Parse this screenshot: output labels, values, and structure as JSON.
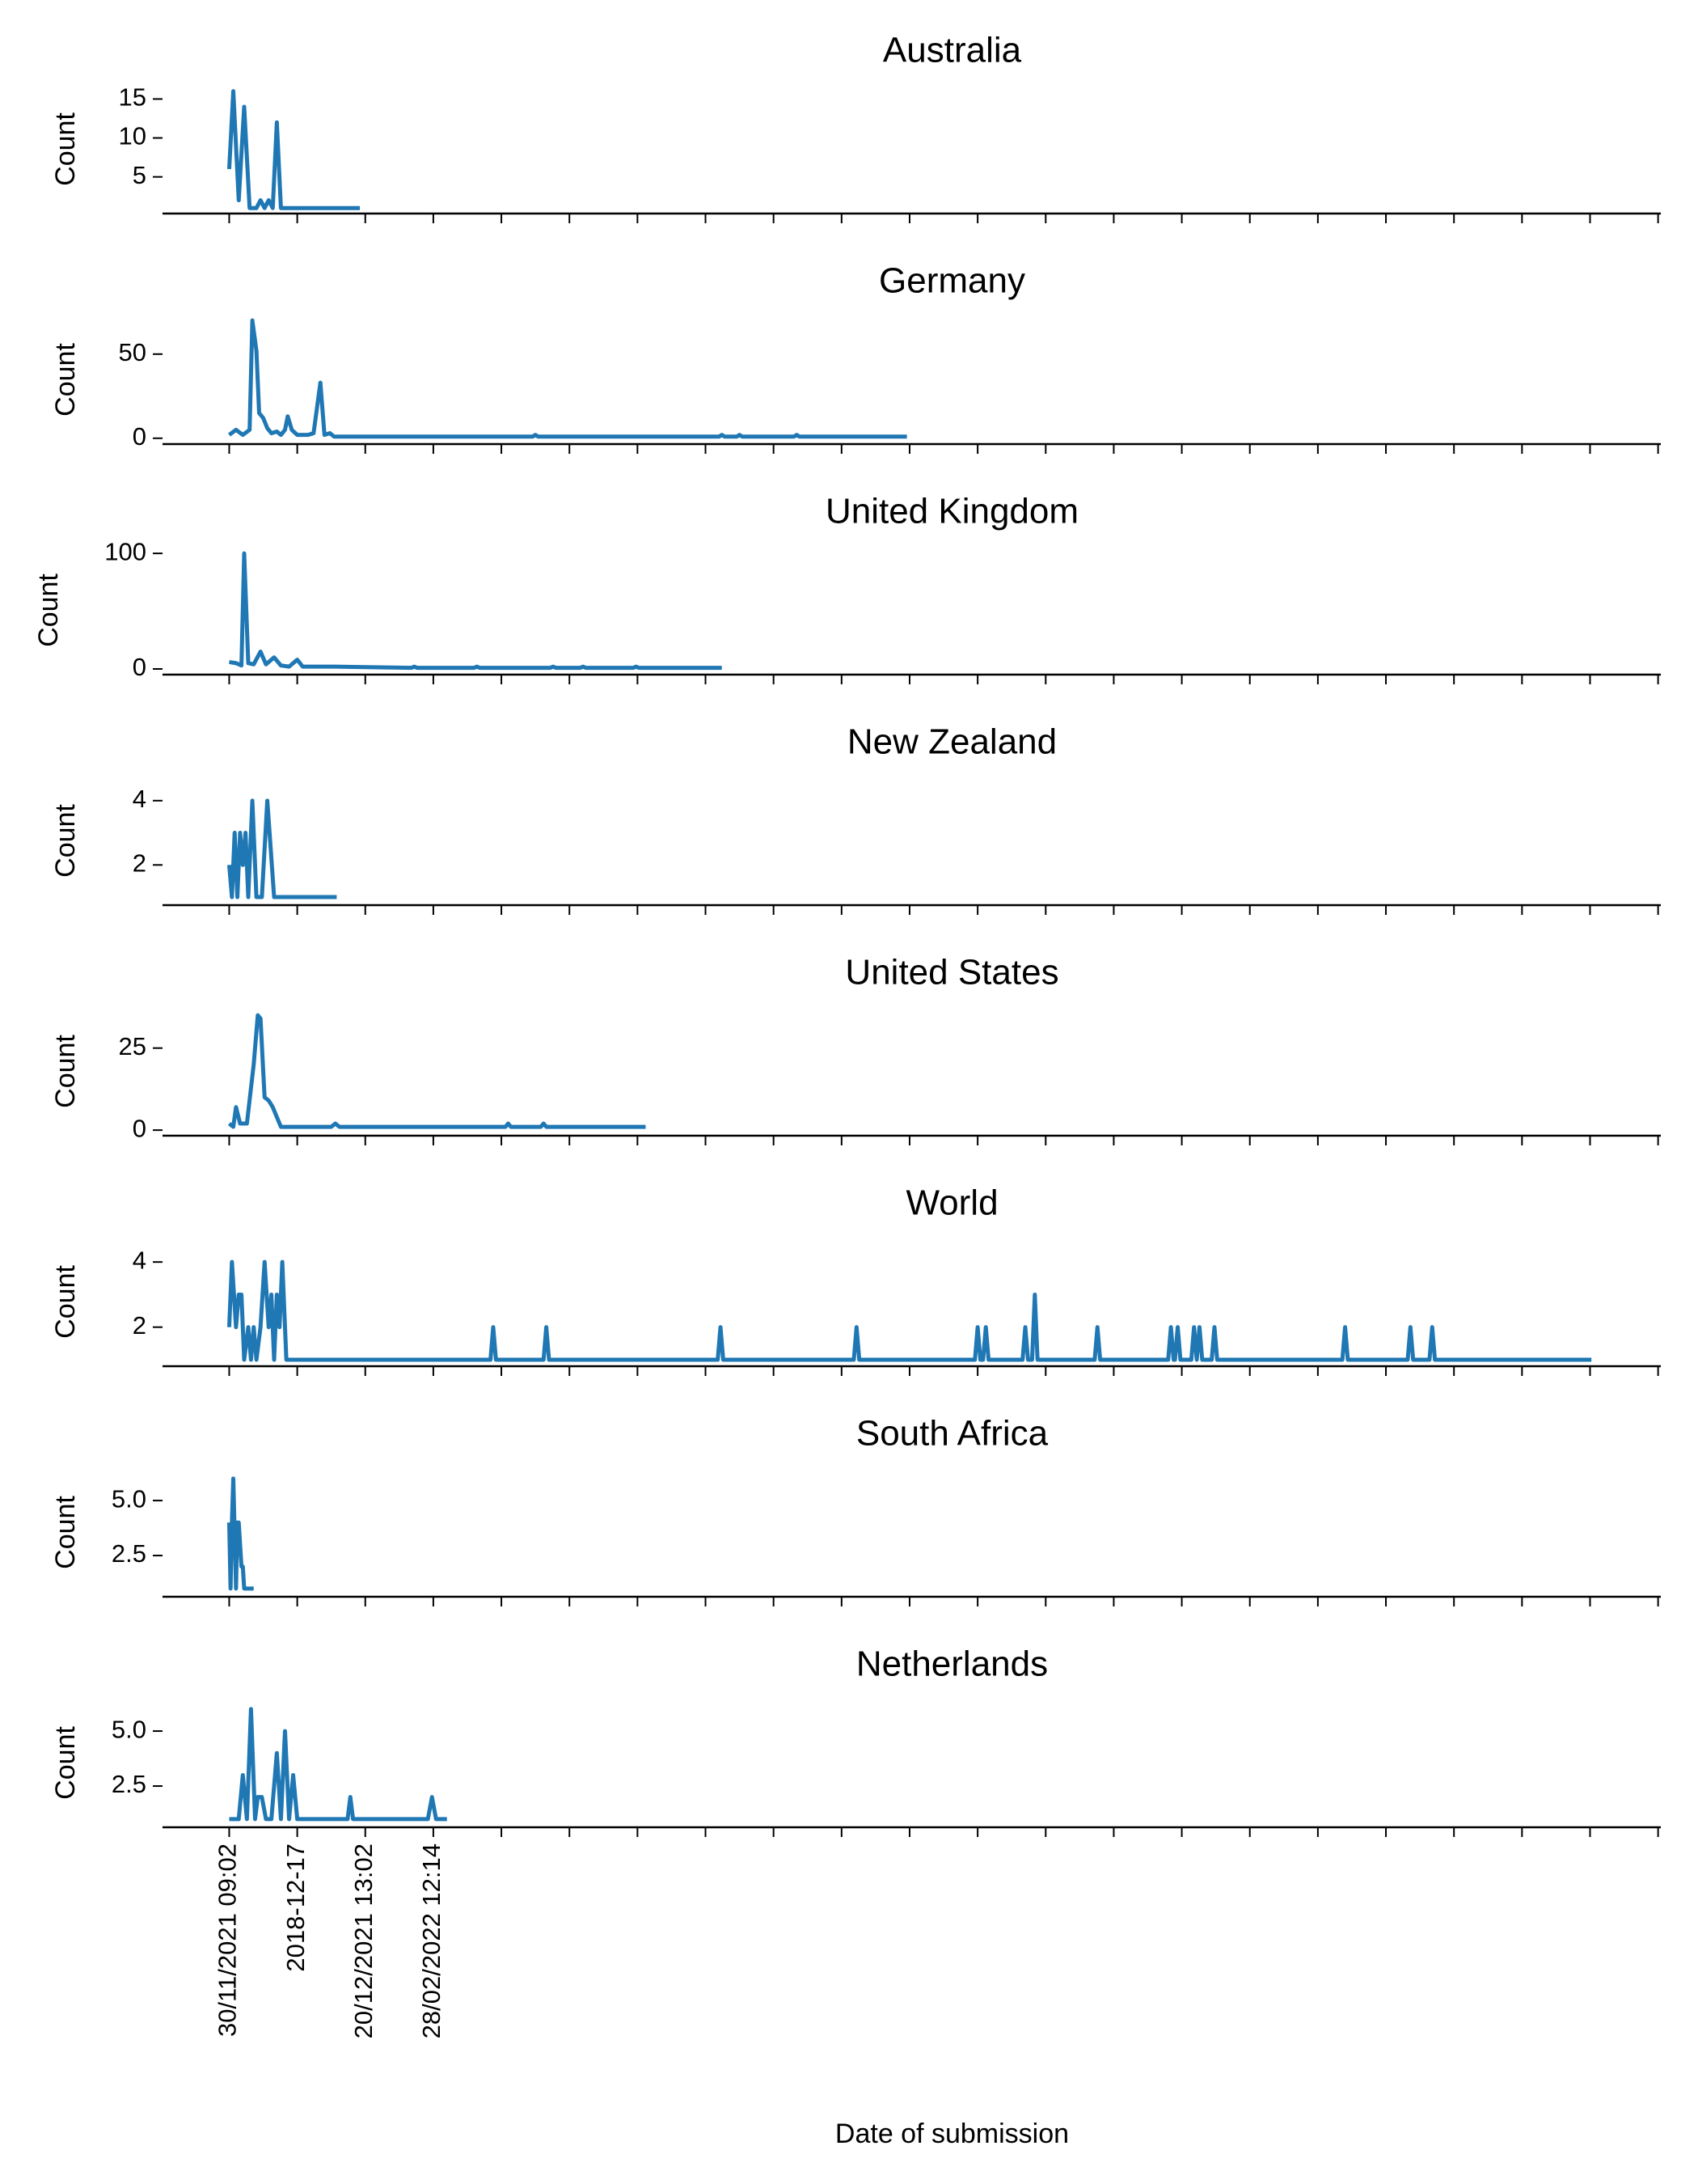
{
  "chart_data": [
    {
      "type": "line",
      "title": "Australia",
      "ylabel": "Count",
      "color": "#1f77b4",
      "x": [
        0,
        3,
        7,
        11,
        15,
        20,
        23,
        26,
        29,
        32,
        35,
        38,
        96
      ],
      "values": [
        6,
        16,
        2,
        14,
        1,
        1,
        2,
        1,
        2,
        1,
        12,
        1,
        1
      ],
      "xlim": [
        -49,
        1052
      ],
      "xticks": [
        0,
        50,
        100,
        150,
        200,
        250,
        300,
        350,
        400,
        450,
        500,
        550,
        600,
        650,
        700,
        750,
        800,
        850,
        900,
        950,
        1000,
        1050
      ],
      "ylim": [
        0.5,
        16.6
      ],
      "yticks": [
        5,
        10,
        15
      ]
    },
    {
      "type": "line",
      "title": "Germany",
      "ylabel": "Count",
      "color": "#1f77b4",
      "x": [
        0,
        5,
        10,
        15,
        17,
        20,
        22,
        25,
        28,
        31,
        35,
        38,
        41,
        43,
        46,
        50,
        54,
        58,
        62,
        67,
        70,
        74,
        77,
        223,
        225,
        227,
        360,
        362,
        364,
        373,
        375,
        377,
        415,
        417,
        419,
        498
      ],
      "values": [
        2,
        5,
        2,
        5,
        70,
        52,
        15,
        12,
        6,
        3,
        4,
        2,
        5,
        13,
        5,
        2,
        2,
        2,
        3,
        33,
        2,
        3,
        1,
        1,
        2,
        1,
        1,
        2,
        1,
        1,
        2,
        1,
        1,
        2,
        1,
        1
      ],
      "xlim": [
        -49,
        1052
      ],
      "xticks": [
        0,
        50,
        100,
        150,
        200,
        250,
        300,
        350,
        400,
        450,
        500,
        550,
        600,
        650,
        700,
        750,
        800,
        850,
        900,
        950,
        1000,
        1050
      ],
      "ylim": [
        -2.5,
        72
      ],
      "yticks": [
        0,
        50
      ]
    },
    {
      "type": "line",
      "title": "United Kingdom",
      "ylabel": "Count",
      "color": "#1f77b4",
      "x": [
        0,
        5,
        9,
        11,
        14,
        18,
        23,
        27,
        33,
        38,
        44,
        50,
        54,
        61,
        77,
        134,
        136,
        138,
        180,
        182,
        184,
        236,
        238,
        240,
        258,
        260,
        262,
        297,
        299,
        301,
        362
      ],
      "values": [
        6,
        5,
        3,
        100,
        5,
        4,
        15,
        4,
        10,
        3,
        2,
        8,
        2,
        2,
        2,
        1,
        2,
        1,
        1,
        2,
        1,
        1,
        2,
        1,
        1,
        2,
        1,
        1,
        2,
        1,
        1
      ],
      "xlim": [
        -49,
        1052
      ],
      "xticks": [
        0,
        50,
        100,
        150,
        200,
        250,
        300,
        350,
        400,
        450,
        500,
        550,
        600,
        650,
        700,
        750,
        800,
        850,
        900,
        950,
        1000,
        1050
      ],
      "ylim": [
        -3.5,
        105
      ],
      "yticks": [
        0,
        100
      ]
    },
    {
      "type": "line",
      "title": "New Zealand",
      "ylabel": "Count",
      "color": "#1f77b4",
      "x": [
        0,
        2,
        4,
        6,
        8,
        10,
        12,
        14,
        17,
        20,
        24,
        28,
        33,
        79
      ],
      "values": [
        2,
        1,
        3,
        1,
        3,
        2,
        3,
        1,
        4,
        1,
        1,
        4,
        1,
        1
      ],
      "xlim": [
        -49,
        1052
      ],
      "xticks": [
        0,
        50,
        100,
        150,
        200,
        250,
        300,
        350,
        400,
        450,
        500,
        550,
        600,
        650,
        700,
        750,
        800,
        850,
        900,
        950,
        1000,
        1050
      ],
      "ylim": [
        0.8,
        4.7
      ],
      "yticks": [
        2,
        4
      ]
    },
    {
      "type": "line",
      "title": "United States",
      "ylabel": "Count",
      "color": "#1f77b4",
      "x": [
        0,
        3,
        5,
        8,
        13,
        18,
        21,
        23,
        26,
        29,
        32,
        35,
        38,
        75,
        78,
        81,
        203,
        205,
        207,
        229,
        231,
        233,
        306
      ],
      "values": [
        2,
        1,
        7,
        2,
        2,
        20,
        35,
        34,
        10,
        9,
        7,
        4,
        1,
        1,
        2,
        1,
        1,
        2,
        1,
        1,
        2,
        1,
        1
      ],
      "xlim": [
        -49,
        1052
      ],
      "xticks": [
        0,
        50,
        100,
        150,
        200,
        250,
        300,
        350,
        400,
        450,
        500,
        550,
        600,
        650,
        700,
        750,
        800,
        850,
        900,
        950,
        1000,
        1050
      ],
      "ylim": [
        -1.2,
        37
      ],
      "yticks": [
        0,
        25
      ]
    },
    {
      "type": "line",
      "title": "World",
      "ylabel": "Count",
      "color": "#1f77b4",
      "x": [
        0,
        2,
        5,
        7,
        9,
        11,
        14,
        16,
        18,
        20,
        23,
        26,
        29,
        31,
        33,
        35,
        37,
        39,
        42,
        192,
        194,
        196,
        231,
        233,
        235,
        359,
        361,
        363,
        459,
        461,
        463,
        548,
        550,
        552,
        554,
        556,
        558,
        583,
        585,
        587,
        590,
        592,
        594,
        636,
        638,
        640,
        690,
        692,
        694,
        695,
        697,
        699,
        707,
        709,
        711,
        713,
        715,
        722,
        724,
        726,
        818,
        820,
        822,
        866,
        868,
        870,
        882,
        884,
        886,
        1001
      ],
      "values": [
        2,
        4,
        2,
        3,
        3,
        1,
        2,
        1,
        2,
        1,
        2,
        4,
        2,
        3,
        1,
        3,
        2,
        4,
        1,
        1,
        2,
        1,
        1,
        2,
        1,
        1,
        2,
        1,
        1,
        2,
        1,
        1,
        2,
        1,
        1,
        2,
        1,
        1,
        2,
        1,
        1,
        3,
        1,
        1,
        2,
        1,
        1,
        2,
        1,
        1,
        2,
        1,
        1,
        2,
        1,
        2,
        1,
        1,
        2,
        1,
        1,
        2,
        1,
        1,
        2,
        1,
        1,
        2,
        1,
        1
      ],
      "xlim": [
        -49,
        1052
      ],
      "xticks": [
        0,
        50,
        100,
        150,
        200,
        250,
        300,
        350,
        400,
        450,
        500,
        550,
        600,
        650,
        700,
        750,
        800,
        850,
        900,
        950,
        1000,
        1050
      ],
      "ylim": [
        0.85,
        4.7
      ],
      "yticks": [
        2,
        4
      ]
    },
    {
      "type": "line",
      "title": "South Africa",
      "ylabel": "Count",
      "color": "#1f77b4",
      "x": [
        0,
        1,
        2,
        3,
        5,
        6,
        7,
        9,
        10,
        11,
        18
      ],
      "values": [
        4,
        1,
        4,
        6,
        1,
        4,
        4,
        2,
        2,
        1,
        1
      ],
      "xlim": [
        -49,
        1052
      ],
      "xticks": [
        0,
        50,
        100,
        150,
        200,
        250,
        300,
        350,
        400,
        450,
        500,
        550,
        600,
        650,
        700,
        750,
        800,
        850,
        900,
        950,
        1000,
        1050
      ],
      "ylim": [
        0.7,
        6.4
      ],
      "yticks": [
        {
          "value": 2.5,
          "label": "2.5"
        },
        {
          "value": 5,
          "label": "5.0"
        }
      ]
    },
    {
      "type": "line",
      "title": "Netherlands",
      "ylabel": "Count",
      "xlabel": "Date of submission",
      "color": "#1f77b4",
      "x": [
        0,
        7,
        10,
        13,
        16,
        19,
        21,
        24,
        27,
        31,
        35,
        38,
        41,
        44,
        47,
        50,
        87,
        89,
        91,
        146,
        149,
        152,
        160
      ],
      "values": [
        1,
        1,
        3,
        1,
        6,
        1,
        2,
        2,
        1,
        1,
        4,
        1,
        5,
        1,
        3,
        1,
        1,
        2,
        1,
        1,
        2,
        1,
        1
      ],
      "xlim": [
        -49,
        1052
      ],
      "xticks": [
        {
          "value": 0,
          "label": "30/11/2021 09:02"
        },
        {
          "value": 50,
          "label": "2018-12-17"
        },
        {
          "value": 100,
          "label": "20/12/2021 13:02"
        },
        {
          "value": 150,
          "label": "28/02/2022 12:14"
        },
        200,
        250,
        300,
        350,
        400,
        450,
        500,
        550,
        600,
        650,
        700,
        750,
        800,
        850,
        900,
        950,
        1000,
        1050
      ],
      "ylim": [
        0.7,
        6.4
      ],
      "yticks": [
        {
          "value": 2.5,
          "label": "2.5"
        },
        {
          "value": 5,
          "label": "5.0"
        }
      ]
    }
  ]
}
